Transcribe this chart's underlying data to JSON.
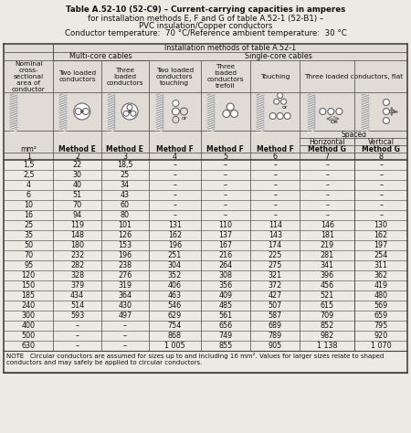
{
  "title_lines": [
    "Table A.52-10 (52-C9) – Current-carrying capacities in amperes",
    "for installation methods E, F and G of table A.52-1 (52-B1) –",
    "PVC insulation/Copper conductors",
    "Conductor temperature:  70 °C/Reference ambient temperature:  30 °C"
  ],
  "method_row": [
    "mm²",
    "Method E",
    "Method E",
    "Method F",
    "Method F",
    "Method F",
    "Method G",
    "Method G"
  ],
  "num_row": [
    "1",
    "2",
    "3",
    "4",
    "5",
    "6",
    "7",
    "8"
  ],
  "col0_header": "Nominal\ncross-\nsectional\narea of\nconductor",
  "col1_header": "Two loaded\nconductors",
  "col2_header": "Three\nloaded\nconductors",
  "col3_header": "Two loaded\nconductors\ntouching",
  "col4_header": "Three\nloaded\nconductors\ntrefoil",
  "col5_header": "Touching",
  "col6_header": "Three loaded conductors, flat",
  "spaced_label": "Spaced",
  "horizontal_label": "Horizontal",
  "vertical_label": "Vertical",
  "install_methods_label": "Installation methods of table A.52-1",
  "multicore_label": "Multi-core cables",
  "singlecore_label": "Single-core cables",
  "data": [
    [
      "1,5",
      "22",
      "18,5",
      "–",
      "–",
      "–",
      "–",
      "–"
    ],
    [
      "2,5",
      "30",
      "25",
      "–",
      "–",
      "–",
      "–",
      "–"
    ],
    [
      "4",
      "40",
      "34",
      "–",
      "–",
      "–",
      "–",
      "–"
    ],
    [
      "6",
      "51",
      "43",
      "–",
      "–",
      "–",
      "–",
      "–"
    ],
    [
      "10",
      "70",
      "60",
      "–",
      "–",
      "–",
      "–",
      "–"
    ],
    [
      "16",
      "94",
      "80",
      "–",
      "–",
      "–",
      "–",
      "–"
    ],
    [
      "25",
      "119",
      "101",
      "131",
      "110",
      "114",
      "146",
      "130"
    ],
    [
      "35",
      "148",
      "126",
      "162",
      "137",
      "143",
      "181",
      "162"
    ],
    [
      "50",
      "180",
      "153",
      "196",
      "167",
      "174",
      "219",
      "197"
    ],
    [
      "70",
      "232",
      "196",
      "251",
      "216",
      "225",
      "281",
      "254"
    ],
    [
      "95",
      "282",
      "238",
      "304",
      "264",
      "275",
      "341",
      "311"
    ],
    [
      "120",
      "328",
      "276",
      "352",
      "308",
      "321",
      "396",
      "362"
    ],
    [
      "150",
      "379",
      "319",
      "406",
      "356",
      "372",
      "456",
      "419"
    ],
    [
      "185",
      "434",
      "364",
      "463",
      "409",
      "427",
      "521",
      "480"
    ],
    [
      "240",
      "514",
      "430",
      "546",
      "485",
      "507",
      "615",
      "569"
    ],
    [
      "300",
      "593",
      "497",
      "629",
      "561",
      "587",
      "709",
      "659"
    ],
    [
      "400",
      "–",
      "–",
      "754",
      "656",
      "689",
      "852",
      "795"
    ],
    [
      "500",
      "–",
      "–",
      "868",
      "749",
      "789",
      "982",
      "920"
    ],
    [
      "630",
      "–",
      "–",
      "1 005",
      "855",
      "905",
      "1 138",
      "1 070"
    ]
  ],
  "note": "NOTE   Circular conductors are assumed for sizes up to and including 16 mm². Values for larger sizes relate to shaped\nconductors and may safely be applied to circular conductors.",
  "bg_color": "#ede9e3",
  "header_bg": "#e0dbd4",
  "border_color": "#444444",
  "text_color": "#111111"
}
